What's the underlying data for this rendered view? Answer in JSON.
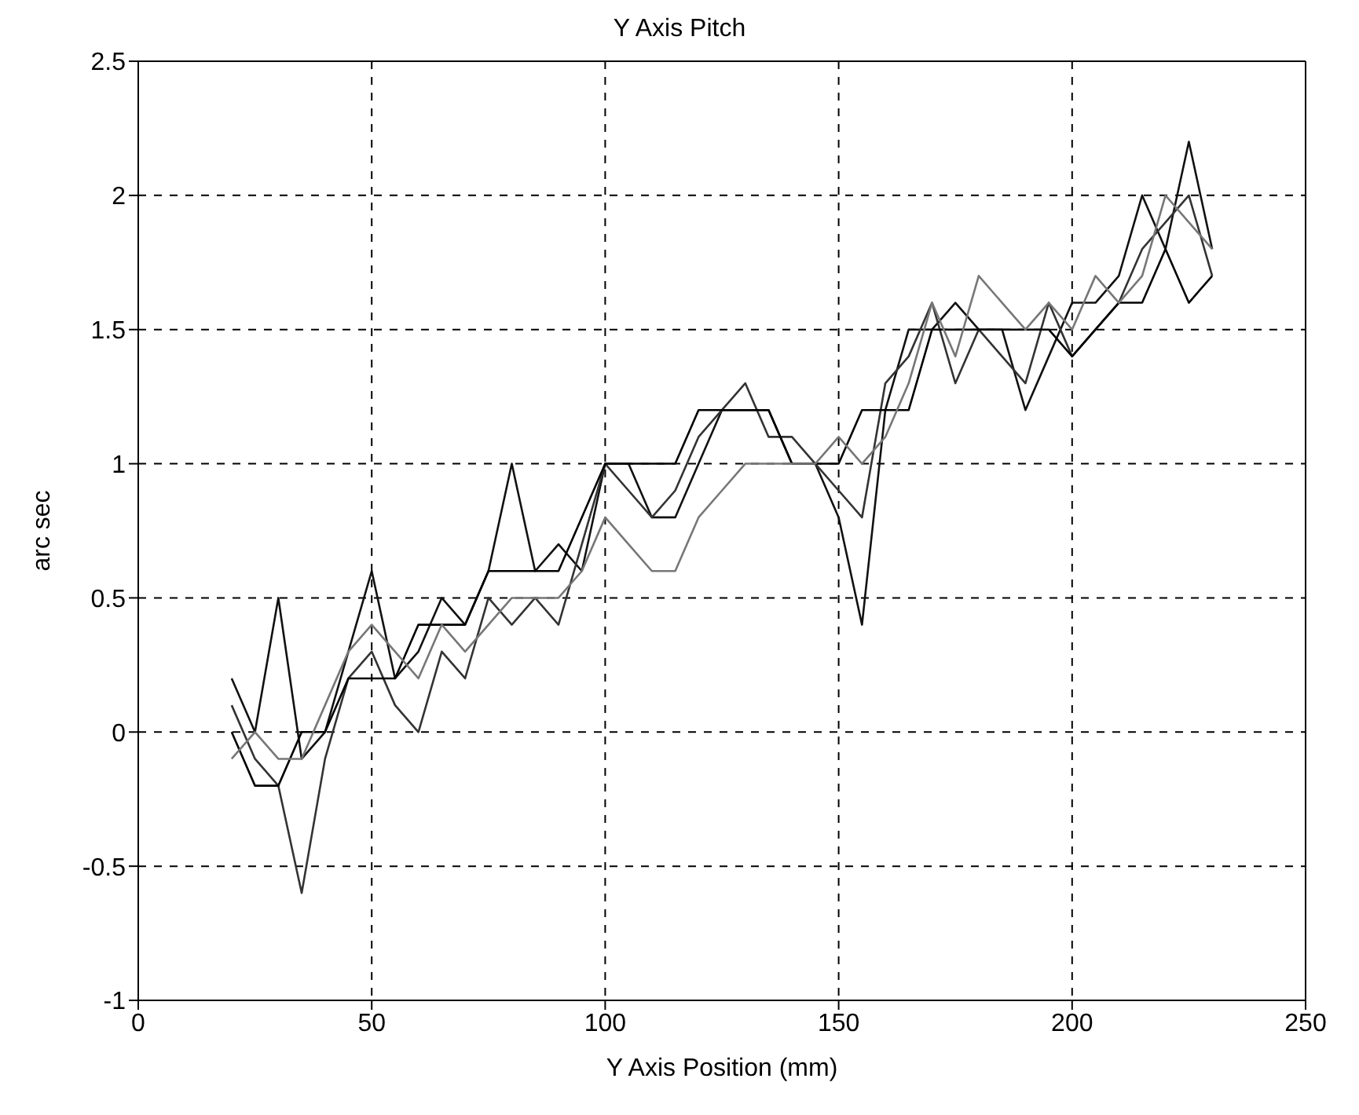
{
  "chart_data": {
    "type": "line",
    "title": "Y Axis Pitch",
    "xlabel": "Y Axis Position (mm)",
    "ylabel": "arc sec",
    "x": [
      20,
      25,
      30,
      35,
      40,
      45,
      50,
      55,
      60,
      65,
      70,
      75,
      80,
      85,
      90,
      95,
      100,
      105,
      110,
      115,
      120,
      125,
      130,
      135,
      140,
      145,
      150,
      155,
      160,
      165,
      170,
      175,
      180,
      185,
      190,
      195,
      200,
      205,
      210,
      215,
      220,
      225,
      230
    ],
    "series": [
      {
        "color": "#111111",
        "values": [
          0.2,
          0,
          0.5,
          -0.1,
          0,
          0.3,
          0.6,
          0.2,
          0.3,
          0.5,
          0.4,
          0.6,
          1.0,
          0.6,
          0.7,
          0.6,
          1.0,
          1.0,
          0.8,
          0.8,
          1.0,
          1.2,
          1.2,
          1.2,
          1.0,
          1.0,
          0.8,
          0.4,
          1.2,
          1.5,
          1.5,
          1.6,
          1.5,
          1.5,
          1.2,
          1.4,
          1.6,
          1.6,
          1.7,
          2.0,
          1.8,
          2.2,
          1.8
        ]
      },
      {
        "color": "#333333",
        "values": [
          0.1,
          -0.1,
          -0.2,
          -0.6,
          -0.1,
          0.2,
          0.3,
          0.1,
          0.0,
          0.3,
          0.2,
          0.5,
          0.4,
          0.5,
          0.4,
          0.7,
          1.0,
          0.9,
          0.8,
          0.9,
          1.1,
          1.2,
          1.3,
          1.1,
          1.1,
          1.0,
          0.9,
          0.8,
          1.3,
          1.4,
          1.6,
          1.3,
          1.5,
          1.4,
          1.3,
          1.6,
          1.4,
          1.5,
          1.6,
          1.8,
          1.9,
          2.0,
          1.7
        ]
      },
      {
        "color": "#000000",
        "values": [
          0,
          -0.2,
          -0.2,
          0,
          0,
          0.2,
          0.2,
          0.2,
          0.4,
          0.4,
          0.4,
          0.6,
          0.6,
          0.6,
          0.6,
          0.8,
          1.0,
          1.0,
          1.0,
          1.0,
          1.2,
          1.2,
          1.2,
          1.2,
          1.0,
          1.0,
          1.0,
          1.2,
          1.2,
          1.2,
          1.5,
          1.5,
          1.5,
          1.5,
          1.5,
          1.5,
          1.4,
          1.5,
          1.6,
          1.6,
          1.8,
          1.6,
          1.7
        ]
      },
      {
        "color": "#777777",
        "values": [
          -0.1,
          0,
          -0.1,
          -0.1,
          0.1,
          0.3,
          0.4,
          0.3,
          0.2,
          0.4,
          0.3,
          0.4,
          0.5,
          0.5,
          0.5,
          0.6,
          0.8,
          0.7,
          0.6,
          0.6,
          0.8,
          0.9,
          1.0,
          1.0,
          1.0,
          1.0,
          1.1,
          1.0,
          1.1,
          1.3,
          1.6,
          1.4,
          1.7,
          1.6,
          1.5,
          1.6,
          1.5,
          1.7,
          1.6,
          1.7,
          2.0,
          1.9,
          1.8
        ]
      }
    ],
    "xlim": [
      0,
      250
    ],
    "xticks": [
      0,
      50,
      100,
      150,
      200,
      250
    ],
    "ylim": [
      -1,
      2.5
    ],
    "yticks": [
      -1,
      -0.5,
      0,
      0.5,
      1,
      1.5,
      2,
      2.5
    ],
    "grid": true,
    "marker": "none",
    "line_style": "solid"
  }
}
